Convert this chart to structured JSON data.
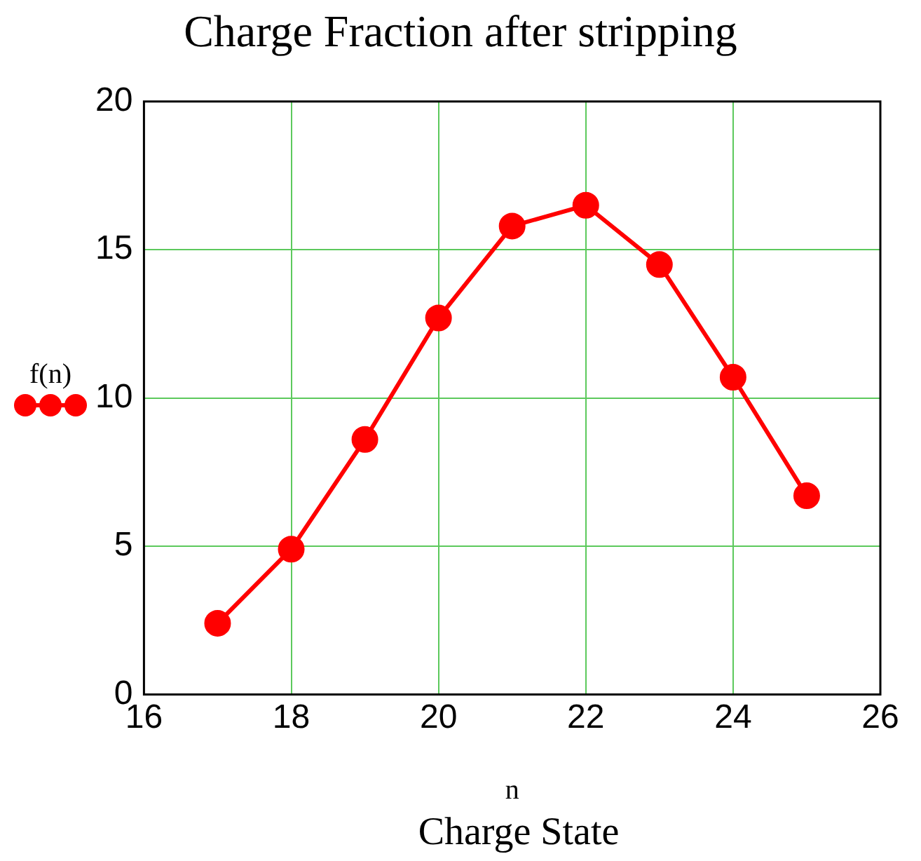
{
  "chart_data": {
    "type": "line",
    "title": "Charge Fraction after stripping",
    "xlabel": "n",
    "annotations": [
      "Charge State"
    ],
    "x": [
      17,
      18,
      19,
      20,
      21,
      22,
      23,
      24,
      25
    ],
    "series": [
      {
        "name": "f(n)",
        "color": "#ff0000",
        "values": [
          2.4,
          4.9,
          8.6,
          12.7,
          15.8,
          16.5,
          14.5,
          10.7,
          6.7
        ]
      }
    ],
    "xlim": [
      16,
      26
    ],
    "xticks": [
      16,
      18,
      20,
      22,
      24,
      26
    ],
    "ylim": [
      0,
      20
    ],
    "yticks": [
      0,
      5,
      10,
      15,
      20
    ],
    "grid": true,
    "legend": "left",
    "marker": "circle",
    "line_style": "solid"
  }
}
